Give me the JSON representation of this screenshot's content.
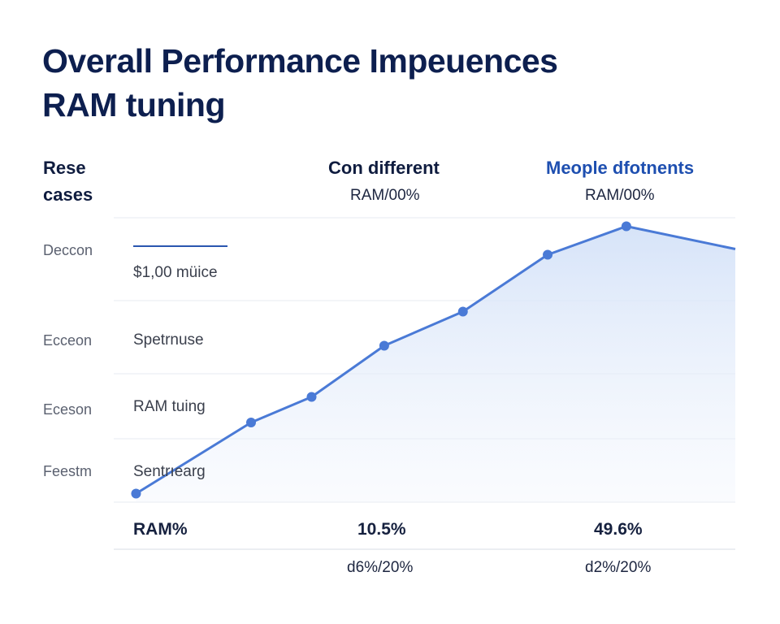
{
  "title": {
    "line1": "Overall Performance Impeuences",
    "line2": "RAM tuning"
  },
  "columns": [
    {
      "header": "Rese",
      "header2": "cases"
    },
    {
      "header": "Con different",
      "sub": "RAM/00%"
    },
    {
      "header": "Meople dfotnents",
      "sub": "RAM/00%"
    }
  ],
  "rows": [
    {
      "label": "Deccon",
      "cell": "$1,00 müice"
    },
    {
      "label": "Ecceon",
      "cell": "Spetrnuse"
    },
    {
      "label": "Eceson",
      "cell": "RAM tuing"
    },
    {
      "label": "Feestm",
      "cell": "Sentrıearg"
    }
  ],
  "footer": {
    "label": "RAM%",
    "value1": "10.5%",
    "value2": "49.6%",
    "sub1": "d6%/20%",
    "sub2": "d2%/20%"
  },
  "colors": {
    "title": "#0d1f4f",
    "accent": "#1e4fb0",
    "line": "#4a7ad6",
    "fill": "#dbe6f8"
  },
  "chart_data": {
    "type": "area",
    "title": "",
    "xlabel": "",
    "ylabel": "",
    "xlim": [
      0,
      100
    ],
    "ylim": [
      0,
      100
    ],
    "grid": true,
    "x": [
      1,
      20,
      30,
      42,
      55,
      69,
      82,
      100
    ],
    "values": [
      3,
      28,
      37,
      55,
      67,
      87,
      97,
      89
    ],
    "markers": [
      true,
      true,
      true,
      true,
      true,
      true,
      true,
      false
    ]
  }
}
